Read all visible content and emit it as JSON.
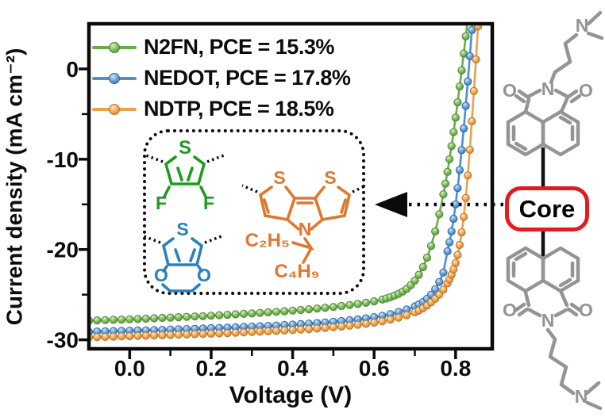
{
  "mol": {
    "S": "S",
    "F": "F",
    "O": "O",
    "N": "N",
    "C2H5": "C₂H₅",
    "C4H9": "C₄H₉",
    "core": "Core"
  },
  "chart_data": {
    "type": "line",
    "title": "",
    "xlabel": "Voltage (V)",
    "ylabel": "Current density (mA cm⁻²)",
    "xlim": [
      -0.1,
      0.89
    ],
    "ylim": [
      -31,
      5
    ],
    "x_major_ticks": [
      0.0,
      0.2,
      0.4,
      0.6,
      0.8
    ],
    "x_tick_labels": [
      "0.0",
      "0.2",
      "0.4",
      "0.6",
      "0.8"
    ],
    "x_minor_ticks": [
      0.1,
      0.3,
      0.5,
      0.7
    ],
    "y_major_ticks": [
      0,
      -10,
      -20,
      -30
    ],
    "y_tick_labels": [
      "0",
      "-10",
      "-20",
      "-30"
    ],
    "y_minor_ticks": [
      -5,
      -15,
      -25
    ],
    "grid": false,
    "legend_position": "upper-left-inside",
    "marker_style": "3d-bead-circle",
    "series": [
      {
        "name": "N2FN",
        "pce": "15.3%",
        "legend_label": "N2FN, PCE = 15.3%",
        "color": "#6aab4d",
        "edge": "#4c8a36",
        "points": [
          [
            -0.1,
            -27.88
          ],
          [
            -0.08,
            -27.85
          ],
          [
            -0.06,
            -27.82
          ],
          [
            -0.04,
            -27.79
          ],
          [
            -0.02,
            -27.76
          ],
          [
            0,
            -27.73
          ],
          [
            0.02,
            -27.7
          ],
          [
            0.04,
            -27.66
          ],
          [
            0.06,
            -27.62
          ],
          [
            0.08,
            -27.58
          ],
          [
            0.1,
            -27.54
          ],
          [
            0.12,
            -27.5
          ],
          [
            0.14,
            -27.46
          ],
          [
            0.16,
            -27.42
          ],
          [
            0.18,
            -27.38
          ],
          [
            0.2,
            -27.33
          ],
          [
            0.22,
            -27.28
          ],
          [
            0.24,
            -27.23
          ],
          [
            0.26,
            -27.18
          ],
          [
            0.28,
            -27.13
          ],
          [
            0.3,
            -27.08
          ],
          [
            0.32,
            -27.02
          ],
          [
            0.34,
            -26.96
          ],
          [
            0.36,
            -26.9
          ],
          [
            0.38,
            -26.84
          ],
          [
            0.4,
            -26.77
          ],
          [
            0.42,
            -26.7
          ],
          [
            0.44,
            -26.62
          ],
          [
            0.46,
            -26.54
          ],
          [
            0.48,
            -26.45
          ],
          [
            0.5,
            -26.36
          ],
          [
            0.52,
            -26.26
          ],
          [
            0.54,
            -26.15
          ],
          [
            0.56,
            -26.03
          ],
          [
            0.58,
            -25.9
          ],
          [
            0.6,
            -25.74
          ],
          [
            0.62,
            -25.54
          ],
          [
            0.63,
            -25.42
          ],
          [
            0.64,
            -25.28
          ],
          [
            0.65,
            -25.11
          ],
          [
            0.66,
            -24.91
          ],
          [
            0.67,
            -24.66
          ],
          [
            0.68,
            -24.36
          ],
          [
            0.69,
            -23.95
          ],
          [
            0.7,
            -23.45
          ],
          [
            0.71,
            -22.8
          ],
          [
            0.72,
            -21.95
          ],
          [
            0.73,
            -20.9
          ],
          [
            0.74,
            -19.6
          ],
          [
            0.75,
            -18.0
          ],
          [
            0.76,
            -16.1
          ],
          [
            0.77,
            -13.9
          ],
          [
            0.775,
            -12.7
          ],
          [
            0.78,
            -11.4
          ],
          [
            0.785,
            -10.0
          ],
          [
            0.79,
            -8.55
          ],
          [
            0.795,
            -7.0
          ],
          [
            0.8,
            -5.4
          ],
          [
            0.805,
            -3.7
          ],
          [
            0.81,
            -1.95
          ],
          [
            0.815,
            -0.15
          ],
          [
            0.82,
            1.7
          ],
          [
            0.825,
            3.6
          ],
          [
            0.83,
            5.55
          ]
        ]
      },
      {
        "name": "NEDOT",
        "pce": "17.8%",
        "legend_label": "NEDOT, PCE = 17.8%",
        "color": "#4e8fd2",
        "edge": "#36699f",
        "points": [
          [
            -0.1,
            -29.12
          ],
          [
            -0.08,
            -29.09
          ],
          [
            -0.06,
            -29.07
          ],
          [
            -0.04,
            -29.04
          ],
          [
            -0.02,
            -29.02
          ],
          [
            0,
            -29.0
          ],
          [
            0.02,
            -28.97
          ],
          [
            0.04,
            -28.95
          ],
          [
            0.06,
            -28.92
          ],
          [
            0.08,
            -28.9
          ],
          [
            0.1,
            -28.87
          ],
          [
            0.12,
            -28.84
          ],
          [
            0.14,
            -28.81
          ],
          [
            0.16,
            -28.78
          ],
          [
            0.18,
            -28.75
          ],
          [
            0.2,
            -28.72
          ],
          [
            0.22,
            -28.69
          ],
          [
            0.24,
            -28.66
          ],
          [
            0.26,
            -28.62
          ],
          [
            0.28,
            -28.58
          ],
          [
            0.3,
            -28.54
          ],
          [
            0.32,
            -28.5
          ],
          [
            0.34,
            -28.46
          ],
          [
            0.36,
            -28.42
          ],
          [
            0.38,
            -28.37
          ],
          [
            0.4,
            -28.32
          ],
          [
            0.42,
            -28.27
          ],
          [
            0.44,
            -28.21
          ],
          [
            0.46,
            -28.15
          ],
          [
            0.48,
            -28.08
          ],
          [
            0.5,
            -28.01
          ],
          [
            0.52,
            -27.93
          ],
          [
            0.54,
            -27.84
          ],
          [
            0.56,
            -27.74
          ],
          [
            0.58,
            -27.63
          ],
          [
            0.6,
            -27.5
          ],
          [
            0.62,
            -27.34
          ],
          [
            0.64,
            -27.15
          ],
          [
            0.66,
            -26.92
          ],
          [
            0.68,
            -26.64
          ],
          [
            0.7,
            -26.3
          ],
          [
            0.71,
            -26.08
          ],
          [
            0.72,
            -25.8
          ],
          [
            0.73,
            -25.45
          ],
          [
            0.74,
            -25.0
          ],
          [
            0.75,
            -24.4
          ],
          [
            0.76,
            -23.6
          ],
          [
            0.77,
            -22.55
          ],
          [
            0.78,
            -20.2
          ],
          [
            0.785,
            -19.2
          ],
          [
            0.79,
            -18.0
          ],
          [
            0.795,
            -16.6
          ],
          [
            0.8,
            -15.0
          ],
          [
            0.805,
            -13.2
          ],
          [
            0.81,
            -11.2
          ],
          [
            0.815,
            -9.0
          ],
          [
            0.82,
            -6.6
          ],
          [
            0.825,
            -4.1
          ],
          [
            0.83,
            -1.4
          ],
          [
            0.835,
            1.4
          ],
          [
            0.84,
            4.3
          ],
          [
            0.845,
            7.3
          ]
        ]
      },
      {
        "name": "NDTP",
        "pce": "18.5%",
        "legend_label": "NDTP, PCE = 18.5%",
        "color": "#e9a14e",
        "edge": "#b97526",
        "points": [
          [
            -0.1,
            -29.72
          ],
          [
            -0.08,
            -29.7
          ],
          [
            -0.06,
            -29.67
          ],
          [
            -0.04,
            -29.65
          ],
          [
            -0.02,
            -29.62
          ],
          [
            0,
            -29.6
          ],
          [
            0.02,
            -29.57
          ],
          [
            0.04,
            -29.55
          ],
          [
            0.06,
            -29.52
          ],
          [
            0.08,
            -29.5
          ],
          [
            0.1,
            -29.47
          ],
          [
            0.12,
            -29.44
          ],
          [
            0.14,
            -29.41
          ],
          [
            0.16,
            -29.38
          ],
          [
            0.18,
            -29.35
          ],
          [
            0.2,
            -29.32
          ],
          [
            0.22,
            -29.29
          ],
          [
            0.24,
            -29.26
          ],
          [
            0.26,
            -29.22
          ],
          [
            0.28,
            -29.18
          ],
          [
            0.3,
            -29.14
          ],
          [
            0.32,
            -29.1
          ],
          [
            0.34,
            -29.06
          ],
          [
            0.36,
            -29.02
          ],
          [
            0.38,
            -28.97
          ],
          [
            0.4,
            -28.92
          ],
          [
            0.42,
            -28.87
          ],
          [
            0.44,
            -28.81
          ],
          [
            0.46,
            -28.75
          ],
          [
            0.48,
            -28.68
          ],
          [
            0.5,
            -28.61
          ],
          [
            0.52,
            -28.53
          ],
          [
            0.54,
            -28.44
          ],
          [
            0.56,
            -28.34
          ],
          [
            0.58,
            -28.23
          ],
          [
            0.6,
            -28.1
          ],
          [
            0.62,
            -27.95
          ],
          [
            0.64,
            -27.77
          ],
          [
            0.66,
            -27.55
          ],
          [
            0.68,
            -27.28
          ],
          [
            0.7,
            -26.95
          ],
          [
            0.71,
            -26.75
          ],
          [
            0.72,
            -26.5
          ],
          [
            0.73,
            -26.2
          ],
          [
            0.74,
            -25.85
          ],
          [
            0.75,
            -25.45
          ],
          [
            0.76,
            -25.0
          ],
          [
            0.77,
            -24.45
          ],
          [
            0.78,
            -23.75
          ],
          [
            0.785,
            -23.3
          ],
          [
            0.79,
            -22.8
          ],
          [
            0.795,
            -22.2
          ],
          [
            0.8,
            -21.5
          ],
          [
            0.805,
            -20.6
          ],
          [
            0.81,
            -19.5
          ],
          [
            0.815,
            -18.1
          ],
          [
            0.82,
            -16.4
          ],
          [
            0.825,
            -14.3
          ],
          [
            0.83,
            -11.8
          ],
          [
            0.835,
            -8.95
          ],
          [
            0.84,
            -5.8
          ],
          [
            0.845,
            -2.45
          ],
          [
            0.85,
            1.05
          ],
          [
            0.855,
            4.7
          ]
        ]
      }
    ]
  }
}
